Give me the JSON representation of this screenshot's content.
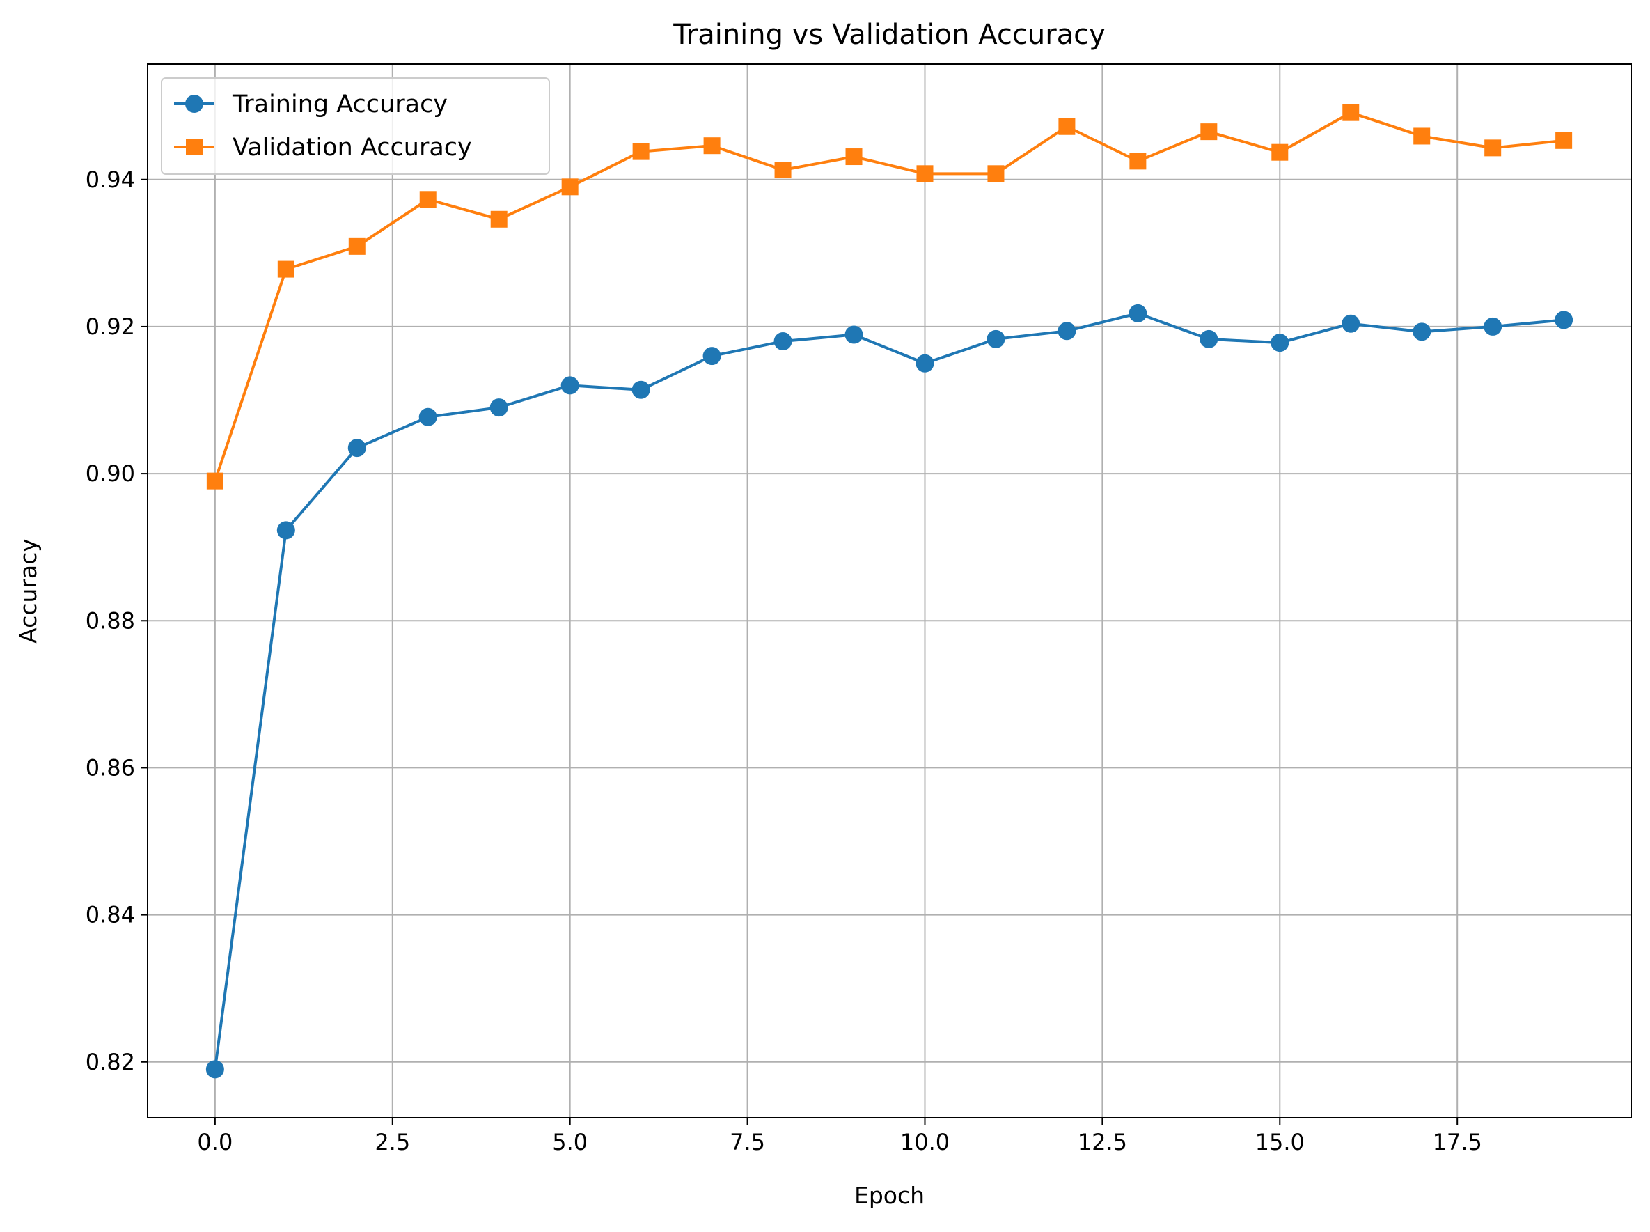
{
  "chart_data": {
    "type": "line",
    "title": "Training vs Validation Accuracy",
    "xlabel": "Epoch",
    "ylabel": "Accuracy",
    "xlim": [
      -0.95,
      19.95
    ],
    "ylim": [
      0.8124,
      0.9557
    ],
    "x": [
      0,
      1,
      2,
      3,
      4,
      5,
      6,
      7,
      8,
      9,
      10,
      11,
      12,
      13,
      14,
      15,
      16,
      17,
      18,
      19
    ],
    "xticks": [
      0.0,
      2.5,
      5.0,
      7.5,
      10.0,
      12.5,
      15.0,
      17.5
    ],
    "xtick_labels": [
      "0.0",
      "2.5",
      "5.0",
      "7.5",
      "10.0",
      "12.5",
      "15.0",
      "17.5"
    ],
    "yticks": [
      0.82,
      0.84,
      0.86,
      0.88,
      0.9,
      0.92,
      0.94
    ],
    "ytick_labels": [
      "0.82",
      "0.84",
      "0.86",
      "0.88",
      "0.90",
      "0.92",
      "0.94"
    ],
    "grid": true,
    "legend_position": "top-left",
    "series": [
      {
        "name": "Training Accuracy",
        "color": "#1f77b4",
        "marker": "circle",
        "values": [
          0.819,
          0.8923,
          0.9035,
          0.9077,
          0.909,
          0.912,
          0.9114,
          0.916,
          0.918,
          0.9189,
          0.915,
          0.9183,
          0.9194,
          0.9218,
          0.9183,
          0.9178,
          0.9204,
          0.9193,
          0.92,
          0.9209
        ]
      },
      {
        "name": "Validation Accuracy",
        "color": "#ff7f0e",
        "marker": "square",
        "values": [
          0.899,
          0.9278,
          0.9309,
          0.9373,
          0.9346,
          0.939,
          0.9438,
          0.9446,
          0.9413,
          0.9431,
          0.9408,
          0.9408,
          0.9472,
          0.9425,
          0.9465,
          0.9437,
          0.9491,
          0.9459,
          0.9443,
          0.9453
        ]
      }
    ]
  }
}
